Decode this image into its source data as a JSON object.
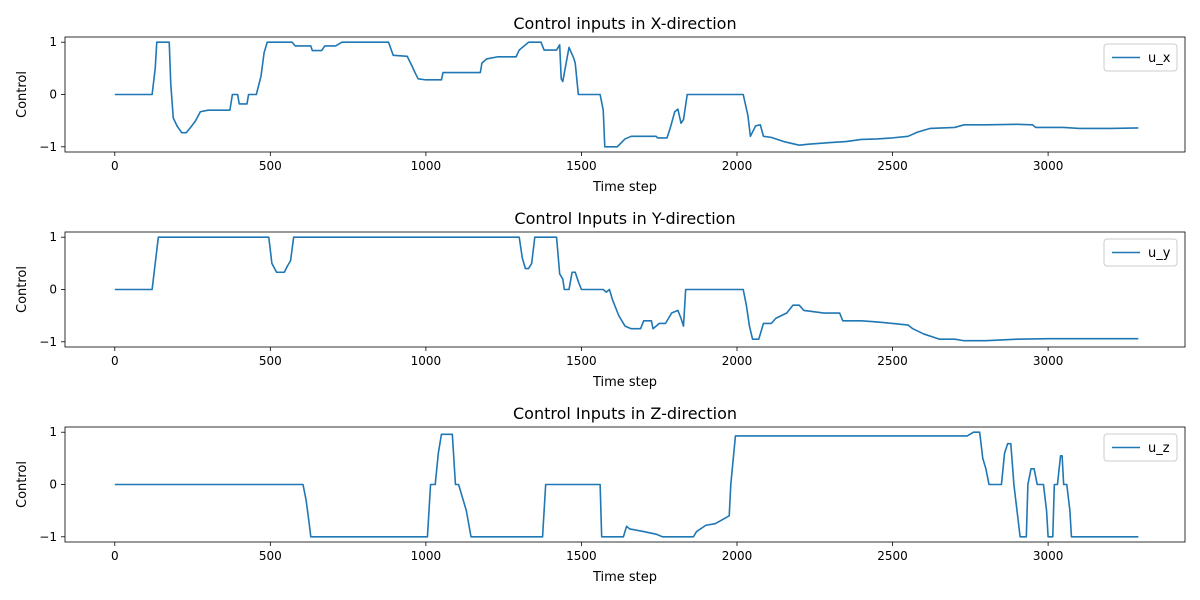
{
  "chart_data": [
    {
      "type": "line",
      "title": "Control inputs in X-direction",
      "xlabel": "Time step",
      "ylabel": "Control",
      "xlim": [
        -160,
        3440
      ],
      "ylim": [
        -1.1,
        1.1
      ],
      "xticks": [
        0,
        500,
        1000,
        1500,
        2000,
        2500,
        3000
      ],
      "yticks": [
        -1,
        0,
        1
      ],
      "grid": false,
      "legend_position": "top-right",
      "series": [
        {
          "name": "u_x",
          "color": "#1f77b4",
          "points": [
            [
              0,
              0
            ],
            [
              120,
              0
            ],
            [
              130,
              0.5
            ],
            [
              135,
              1
            ],
            [
              175,
              1
            ],
            [
              180,
              0.2
            ],
            [
              188,
              -0.45
            ],
            [
              200,
              -0.6
            ],
            [
              215,
              -0.73
            ],
            [
              230,
              -0.73
            ],
            [
              245,
              -0.62
            ],
            [
              260,
              -0.5
            ],
            [
              275,
              -0.33
            ],
            [
              300,
              -0.3
            ],
            [
              330,
              -0.3
            ],
            [
              370,
              -0.3
            ],
            [
              378,
              0
            ],
            [
              395,
              0
            ],
            [
              400,
              -0.18
            ],
            [
              425,
              -0.18
            ],
            [
              430,
              0
            ],
            [
              455,
              0
            ],
            [
              470,
              0.35
            ],
            [
              480,
              0.8
            ],
            [
              490,
              1
            ],
            [
              570,
              1
            ],
            [
              580,
              0.93
            ],
            [
              630,
              0.93
            ],
            [
              635,
              0.84
            ],
            [
              665,
              0.84
            ],
            [
              675,
              0.93
            ],
            [
              710,
              0.93
            ],
            [
              730,
              1
            ],
            [
              880,
              1
            ],
            [
              895,
              0.75
            ],
            [
              940,
              0.73
            ],
            [
              955,
              0.55
            ],
            [
              965,
              0.42
            ],
            [
              975,
              0.3
            ],
            [
              1000,
              0.28
            ],
            [
              1050,
              0.28
            ],
            [
              1055,
              0.42
            ],
            [
              1175,
              0.42
            ],
            [
              1180,
              0.6
            ],
            [
              1195,
              0.68
            ],
            [
              1230,
              0.72
            ],
            [
              1290,
              0.72
            ],
            [
              1300,
              0.85
            ],
            [
              1330,
              1
            ],
            [
              1370,
              1
            ],
            [
              1380,
              0.85
            ],
            [
              1420,
              0.85
            ],
            [
              1430,
              0.95
            ],
            [
              1435,
              0.3
            ],
            [
              1440,
              0.25
            ],
            [
              1460,
              0.9
            ],
            [
              1475,
              0.7
            ],
            [
              1480,
              0.6
            ],
            [
              1490,
              0
            ],
            [
              1560,
              0
            ],
            [
              1570,
              -0.3
            ],
            [
              1575,
              -1
            ],
            [
              1615,
              -1
            ],
            [
              1640,
              -0.85
            ],
            [
              1660,
              -0.8
            ],
            [
              1700,
              -0.8
            ],
            [
              1740,
              -0.8
            ],
            [
              1745,
              -0.83
            ],
            [
              1775,
              -0.83
            ],
            [
              1785,
              -0.65
            ],
            [
              1800,
              -0.33
            ],
            [
              1810,
              -0.28
            ],
            [
              1820,
              -0.55
            ],
            [
              1828,
              -0.48
            ],
            [
              1840,
              0
            ],
            [
              2000,
              0
            ],
            [
              2020,
              0
            ],
            [
              2035,
              -0.4
            ],
            [
              2043,
              -0.8
            ],
            [
              2060,
              -0.6
            ],
            [
              2075,
              -0.58
            ],
            [
              2085,
              -0.8
            ],
            [
              2110,
              -0.82
            ],
            [
              2150,
              -0.9
            ],
            [
              2200,
              -0.97
            ],
            [
              2230,
              -0.95
            ],
            [
              2300,
              -0.92
            ],
            [
              2350,
              -0.9
            ],
            [
              2400,
              -0.86
            ],
            [
              2450,
              -0.85
            ],
            [
              2500,
              -0.83
            ],
            [
              2550,
              -0.8
            ],
            [
              2580,
              -0.72
            ],
            [
              2620,
              -0.65
            ],
            [
              2700,
              -0.63
            ],
            [
              2730,
              -0.58
            ],
            [
              2800,
              -0.58
            ],
            [
              2900,
              -0.57
            ],
            [
              2950,
              -0.58
            ],
            [
              2960,
              -0.63
            ],
            [
              3050,
              -0.63
            ],
            [
              3100,
              -0.65
            ],
            [
              3200,
              -0.65
            ],
            [
              3290,
              -0.64
            ]
          ]
        }
      ]
    },
    {
      "type": "line",
      "title": "Control Inputs in Y-direction",
      "xlabel": "Time step",
      "ylabel": "Control",
      "xlim": [
        -160,
        3440
      ],
      "ylim": [
        -1.1,
        1.1
      ],
      "xticks": [
        0,
        500,
        1000,
        1500,
        2000,
        2500,
        3000
      ],
      "yticks": [
        -1,
        0,
        1
      ],
      "grid": false,
      "legend_position": "top-right",
      "series": [
        {
          "name": "u_y",
          "color": "#1f77b4",
          "points": [
            [
              0,
              0
            ],
            [
              120,
              0
            ],
            [
              130,
              0.5
            ],
            [
              140,
              1
            ],
            [
              495,
              1
            ],
            [
              505,
              0.5
            ],
            [
              520,
              0.33
            ],
            [
              545,
              0.33
            ],
            [
              555,
              0.45
            ],
            [
              565,
              0.55
            ],
            [
              575,
              1
            ],
            [
              1300,
              1
            ],
            [
              1310,
              0.6
            ],
            [
              1320,
              0.4
            ],
            [
              1330,
              0.4
            ],
            [
              1340,
              0.5
            ],
            [
              1350,
              1
            ],
            [
              1420,
              1
            ],
            [
              1430,
              0.3
            ],
            [
              1440,
              0.2
            ],
            [
              1445,
              0
            ],
            [
              1460,
              0
            ],
            [
              1470,
              0.33
            ],
            [
              1480,
              0.33
            ],
            [
              1490,
              0.15
            ],
            [
              1500,
              0
            ],
            [
              1570,
              0
            ],
            [
              1580,
              -0.05
            ],
            [
              1590,
              0
            ],
            [
              1600,
              -0.2
            ],
            [
              1620,
              -0.5
            ],
            [
              1640,
              -0.7
            ],
            [
              1660,
              -0.75
            ],
            [
              1690,
              -0.75
            ],
            [
              1700,
              -0.6
            ],
            [
              1725,
              -0.6
            ],
            [
              1730,
              -0.75
            ],
            [
              1750,
              -0.65
            ],
            [
              1770,
              -0.65
            ],
            [
              1790,
              -0.45
            ],
            [
              1810,
              -0.4
            ],
            [
              1820,
              -0.55
            ],
            [
              1828,
              -0.7
            ],
            [
              1835,
              0
            ],
            [
              2020,
              0
            ],
            [
              2030,
              -0.3
            ],
            [
              2040,
              -0.7
            ],
            [
              2050,
              -0.95
            ],
            [
              2070,
              -0.95
            ],
            [
              2085,
              -0.65
            ],
            [
              2110,
              -0.65
            ],
            [
              2125,
              -0.55
            ],
            [
              2160,
              -0.45
            ],
            [
              2180,
              -0.3
            ],
            [
              2200,
              -0.3
            ],
            [
              2215,
              -0.4
            ],
            [
              2280,
              -0.45
            ],
            [
              2330,
              -0.45
            ],
            [
              2340,
              -0.6
            ],
            [
              2400,
              -0.6
            ],
            [
              2450,
              -0.62
            ],
            [
              2500,
              -0.65
            ],
            [
              2550,
              -0.68
            ],
            [
              2565,
              -0.75
            ],
            [
              2600,
              -0.85
            ],
            [
              2650,
              -0.95
            ],
            [
              2700,
              -0.95
            ],
            [
              2730,
              -0.98
            ],
            [
              2800,
              -0.98
            ],
            [
              2900,
              -0.95
            ],
            [
              3000,
              -0.94
            ],
            [
              3290,
              -0.94
            ]
          ]
        }
      ]
    },
    {
      "type": "line",
      "title": "Control Inputs in Z-direction",
      "xlabel": "Time step",
      "ylabel": "Control",
      "xlim": [
        -160,
        3440
      ],
      "ylim": [
        -1.1,
        1.1
      ],
      "xticks": [
        0,
        500,
        1000,
        1500,
        2000,
        2500,
        3000
      ],
      "yticks": [
        -1,
        0,
        1
      ],
      "grid": false,
      "legend_position": "top-right",
      "series": [
        {
          "name": "u_z",
          "color": "#1f77b4",
          "points": [
            [
              0,
              0
            ],
            [
              605,
              0
            ],
            [
              615,
              -0.3
            ],
            [
              625,
              -0.75
            ],
            [
              630,
              -1
            ],
            [
              1005,
              -1
            ],
            [
              1015,
              0
            ],
            [
              1030,
              0
            ],
            [
              1040,
              0.6
            ],
            [
              1050,
              0.96
            ],
            [
              1085,
              0.96
            ],
            [
              1095,
              0
            ],
            [
              1105,
              0
            ],
            [
              1115,
              -0.2
            ],
            [
              1130,
              -0.5
            ],
            [
              1145,
              -1
            ],
            [
              1375,
              -1
            ],
            [
              1380,
              -0.5
            ],
            [
              1385,
              0
            ],
            [
              1560,
              0
            ],
            [
              1565,
              -1
            ],
            [
              1635,
              -1
            ],
            [
              1645,
              -0.8
            ],
            [
              1655,
              -0.85
            ],
            [
              1700,
              -0.9
            ],
            [
              1740,
              -0.95
            ],
            [
              1760,
              -1
            ],
            [
              1860,
              -1
            ],
            [
              1870,
              -0.9
            ],
            [
              1900,
              -0.78
            ],
            [
              1930,
              -0.75
            ],
            [
              1960,
              -0.65
            ],
            [
              1975,
              -0.6
            ],
            [
              1980,
              0
            ],
            [
              1995,
              0.93
            ],
            [
              2740,
              0.93
            ],
            [
              2760,
              1
            ],
            [
              2780,
              1
            ],
            [
              2790,
              0.5
            ],
            [
              2800,
              0.3
            ],
            [
              2810,
              0
            ],
            [
              2850,
              0
            ],
            [
              2860,
              0.6
            ],
            [
              2870,
              0.78
            ],
            [
              2880,
              0.78
            ],
            [
              2885,
              0.4
            ],
            [
              2890,
              0
            ],
            [
              2900,
              -0.5
            ],
            [
              2910,
              -1
            ],
            [
              2930,
              -1
            ],
            [
              2935,
              0
            ],
            [
              2945,
              0.3
            ],
            [
              2955,
              0.3
            ],
            [
              2965,
              0
            ],
            [
              2985,
              0
            ],
            [
              2995,
              -0.5
            ],
            [
              3000,
              -1
            ],
            [
              3015,
              -1
            ],
            [
              3020,
              0
            ],
            [
              3030,
              0
            ],
            [
              3040,
              0.55
            ],
            [
              3045,
              0.55
            ],
            [
              3050,
              0
            ],
            [
              3060,
              0
            ],
            [
              3070,
              -0.5
            ],
            [
              3075,
              -1
            ],
            [
              3290,
              -1
            ]
          ]
        }
      ]
    }
  ]
}
